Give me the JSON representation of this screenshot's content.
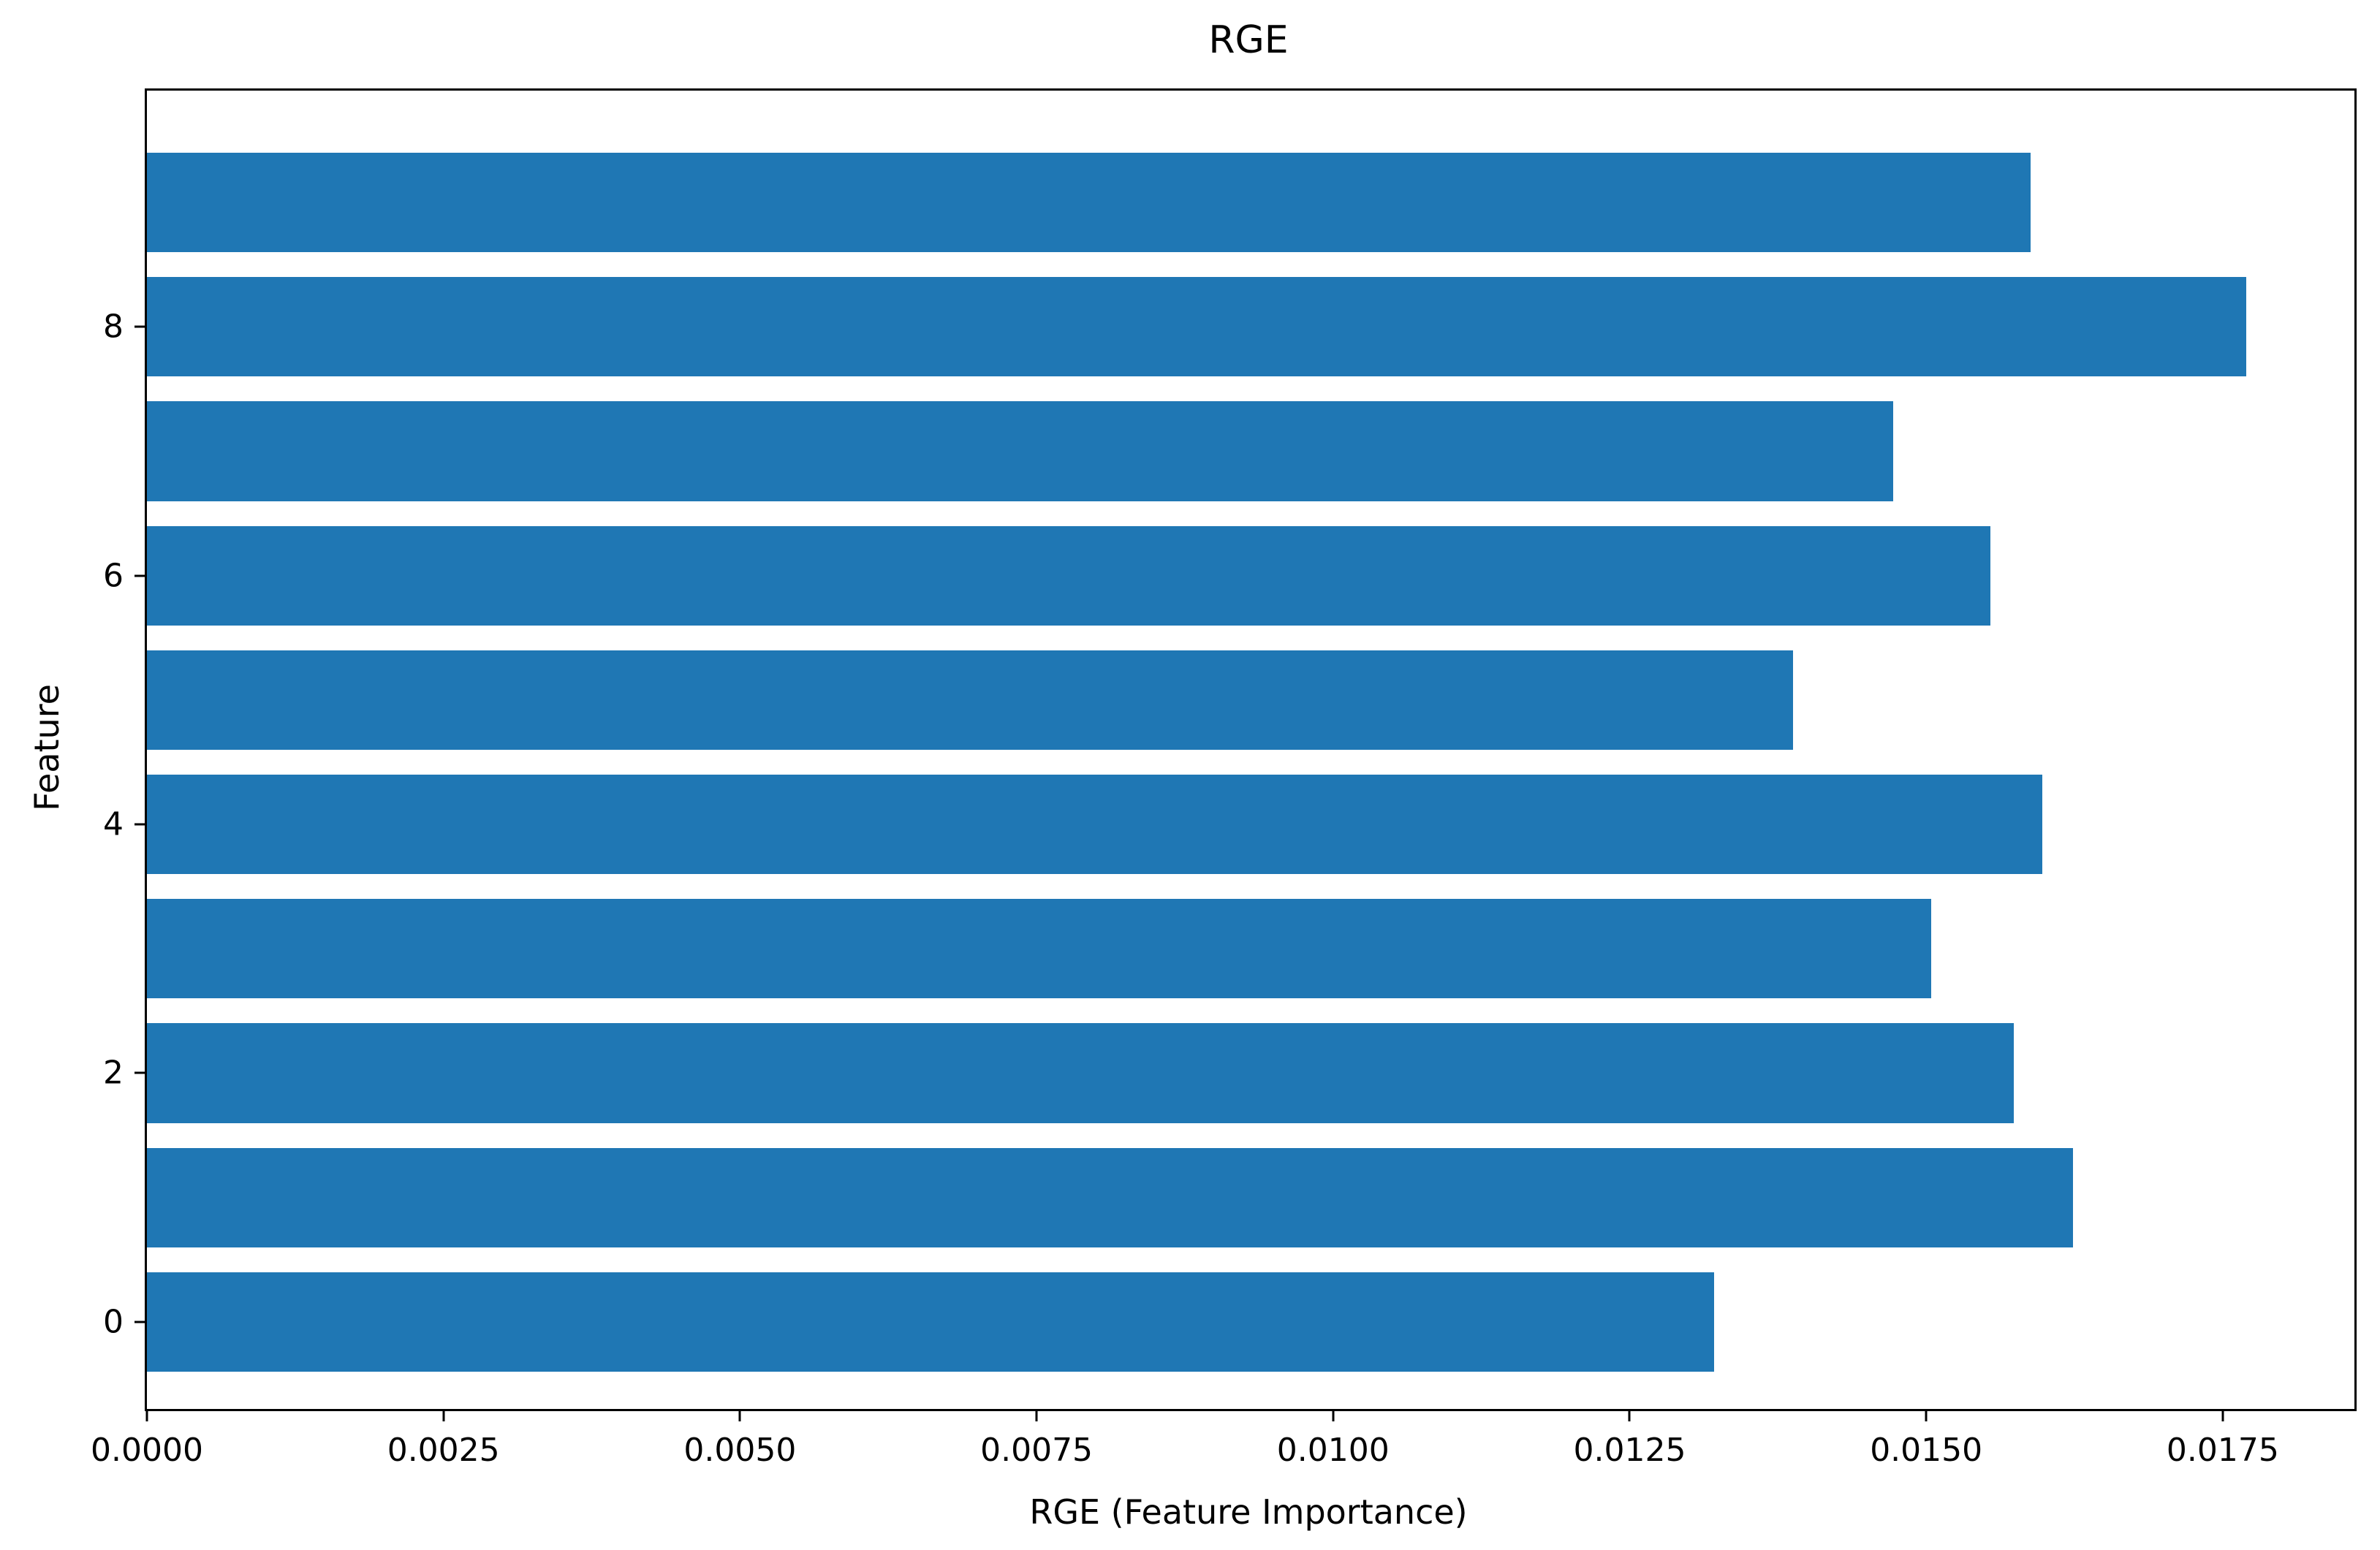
{
  "figure": {
    "title": "RGE",
    "xlabel": "RGE (Feature Importance)",
    "ylabel": "Feature"
  },
  "chart_data": {
    "type": "bar",
    "orientation": "horizontal",
    "title": "RGE",
    "xlabel": "RGE (Feature Importance)",
    "ylabel": "Feature",
    "categories": [
      "0",
      "1",
      "2",
      "3",
      "4",
      "5",
      "6",
      "7",
      "8",
      "9"
    ],
    "values": [
      0.01321,
      0.01624,
      0.01574,
      0.01504,
      0.01598,
      0.01388,
      0.01554,
      0.01472,
      0.0177,
      0.01588
    ],
    "bar_color": "#1f77b4",
    "bar_height": 0.8,
    "xlim": [
      0,
      0.01861
    ],
    "ylim": [
      -0.7,
      9.9
    ],
    "xticks": {
      "values": [
        0.0,
        0.0025,
        0.005,
        0.0075,
        0.01,
        0.0125,
        0.015,
        0.0175
      ],
      "labels": [
        "0.0000",
        "0.0025",
        "0.0050",
        "0.0075",
        "0.0100",
        "0.0125",
        "0.0150",
        "0.0175"
      ]
    },
    "yticks": {
      "values": [
        0,
        2,
        4,
        6,
        8
      ],
      "labels": [
        "0",
        "2",
        "4",
        "6",
        "8"
      ]
    },
    "grid": false,
    "legend": null
  }
}
